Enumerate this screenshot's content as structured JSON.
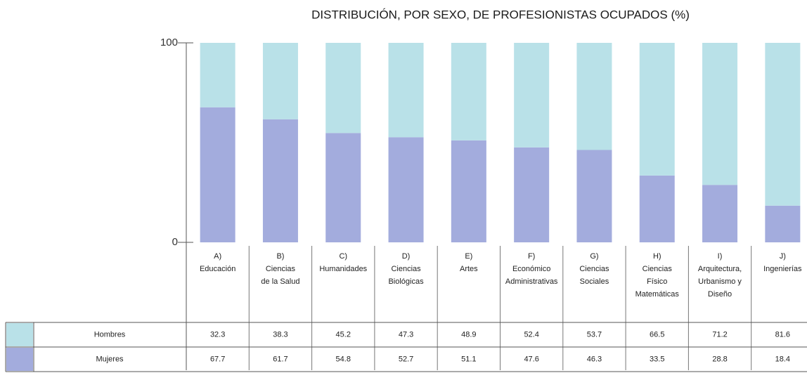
{
  "chart_data": {
    "type": "stacked_bar",
    "title": "DISTRIBUCIÓN, POR SEXO, DE PROFESIONISTAS OCUPADOS (%)",
    "categories": [
      [
        "A)",
        "Educación"
      ],
      [
        "B)",
        "Ciencias",
        "de la Salud"
      ],
      [
        "C)",
        "Humanidades"
      ],
      [
        "D)",
        "Ciencias",
        "Biológicas"
      ],
      [
        "E)",
        "Artes"
      ],
      [
        "F)",
        "Económico",
        "Administrativas"
      ],
      [
        "G)",
        "Ciencias",
        "Sociales"
      ],
      [
        "H)",
        "Ciencias",
        "Físico",
        "Matemáticas"
      ],
      [
        "I)",
        "Arquitectura,",
        "Urbanismo y",
        "Diseño"
      ],
      [
        "J)",
        "Ingenierías"
      ]
    ],
    "series": [
      {
        "name": "Hombres",
        "color": "#b9e1e8",
        "values": [
          32.3,
          38.3,
          45.2,
          47.3,
          48.9,
          52.4,
          53.7,
          66.5,
          71.2,
          81.6
        ]
      },
      {
        "name": "Mujeres",
        "color": "#a3acdd",
        "values": [
          67.7,
          61.7,
          54.8,
          52.7,
          51.1,
          47.6,
          46.3,
          33.5,
          28.8,
          18.4
        ]
      }
    ],
    "ylim": [
      0,
      100
    ],
    "yticks": [
      0,
      100
    ]
  }
}
